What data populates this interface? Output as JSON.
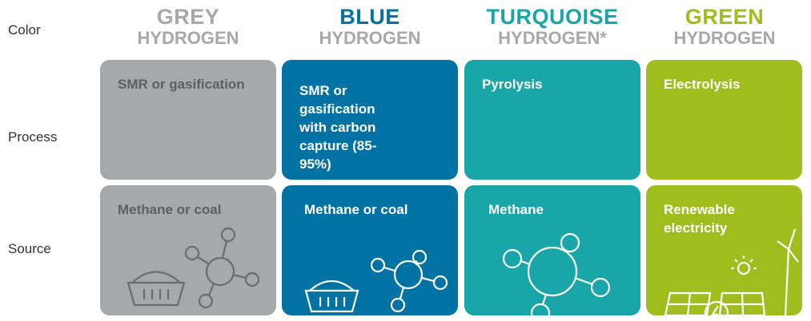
{
  "row_labels": [
    "Color",
    "Process",
    "Source"
  ],
  "columns": [
    {
      "color": "GREY",
      "subtitle": "HYDROGEN",
      "process": "SMR or gasification",
      "source": "Methane or coal"
    },
    {
      "color": "BLUE",
      "subtitle": "HYDROGEN",
      "process": "SMR or gasification with carbon capture (85-95%)",
      "source": "Methane or coal"
    },
    {
      "color": "TURQUOISE",
      "subtitle": "HYDROGEN*",
      "process": "Pyrolysis",
      "source": "Methane"
    },
    {
      "color": "GREEN",
      "subtitle": "HYDROGEN",
      "process": "Electrolysis",
      "source": "Renewable electricity"
    }
  ]
}
